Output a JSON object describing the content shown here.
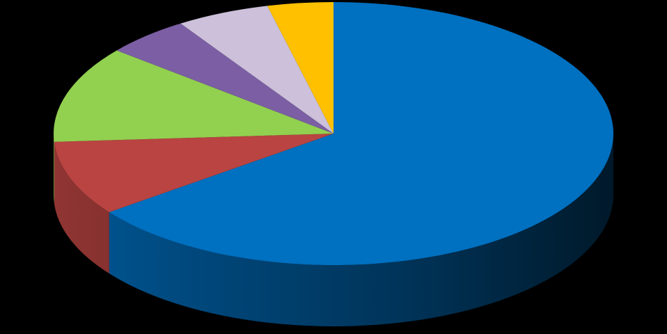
{
  "chart_data": {
    "type": "pie",
    "style": "3d",
    "title": "",
    "legend": "none",
    "start": "top",
    "direction": "clockwise",
    "slices": [
      {
        "value": 64.8,
        "color": "#0070C0"
      },
      {
        "value": 9.2,
        "color": "#B94441"
      },
      {
        "value": 11.9,
        "color": "#92D050"
      },
      {
        "value": 4.9,
        "color": "#7B5EA3"
      },
      {
        "value": 5.4,
        "color": "#CCC0DA"
      },
      {
        "value": 3.8,
        "color": "#FFC000"
      }
    ]
  }
}
